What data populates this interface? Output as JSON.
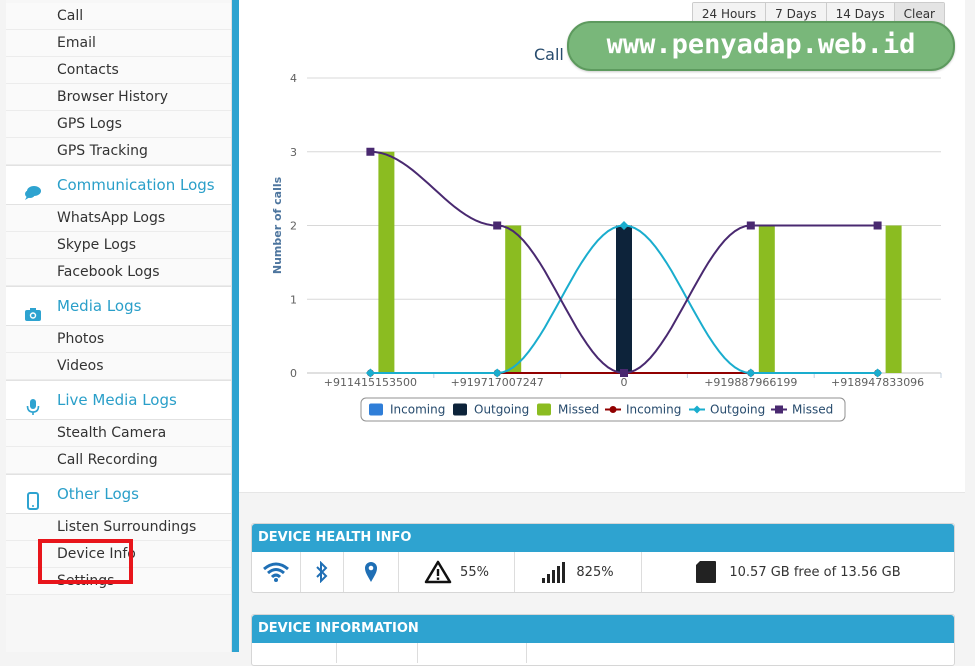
{
  "sidebar": {
    "items_top": [
      "Call",
      "Email",
      "Contacts",
      "Browser History",
      "GPS Logs",
      "GPS Tracking"
    ],
    "sections": [
      {
        "label": "Communication Logs",
        "icon": "chat-icon",
        "items": [
          "WhatsApp Logs",
          "Skype Logs",
          "Facebook Logs"
        ]
      },
      {
        "label": "Media Logs",
        "icon": "camera-icon",
        "items": [
          "Photos",
          "Videos"
        ]
      },
      {
        "label": "Live Media Logs",
        "icon": "microphone-icon",
        "items": [
          "Stealth Camera",
          "Call Recording"
        ]
      },
      {
        "label": "Other Logs",
        "icon": "phone-icon",
        "items": [
          "Listen Surroundings",
          "Device Info",
          "Settings"
        ]
      }
    ],
    "highlight_color": "#e8151b",
    "accent": "#2ea3d0"
  },
  "range_buttons": [
    "24 Hours",
    "7 Days",
    "14 Days",
    "Clear"
  ],
  "watermark": "www.penyadap.web.id",
  "chart_data": {
    "type": "bar",
    "title": "Call Details Top 5",
    "ylabel": "Number of calls",
    "xlabel": "",
    "ylim": [
      0,
      4
    ],
    "yticks": [
      0,
      1,
      2,
      3,
      4
    ],
    "grid": true,
    "legend_position": "bottom",
    "categories": [
      "+911415153500",
      "+919717007247",
      "0",
      "+919887966199",
      "+918947833096"
    ],
    "series": [
      {
        "name": "Incoming",
        "type": "bar",
        "color": "#2f7ed8",
        "values": [
          0,
          0,
          0,
          0,
          0
        ]
      },
      {
        "name": "Outgoing",
        "type": "bar",
        "color": "#0d233a",
        "values": [
          0,
          0,
          2,
          0,
          0
        ]
      },
      {
        "name": "Missed",
        "type": "bar",
        "color": "#8bbc21",
        "values": [
          3,
          2,
          0,
          2,
          2
        ]
      },
      {
        "name": "Incoming",
        "type": "line",
        "color": "#910000",
        "values": [
          0,
          0,
          0,
          0,
          0
        ]
      },
      {
        "name": "Outgoing",
        "type": "line",
        "color": "#1aadce",
        "values": [
          0,
          0,
          2,
          0,
          0
        ]
      },
      {
        "name": "Missed",
        "type": "line",
        "color": "#492970",
        "values": [
          3,
          2,
          0,
          2,
          2
        ]
      }
    ]
  },
  "device_health": {
    "title": "DEVICE HEALTH INFO",
    "battery": "55%",
    "signal": "825%",
    "storage": "10.57 GB free of 13.56 GB"
  },
  "device_info": {
    "title": "DEVICE INFORMATION"
  }
}
